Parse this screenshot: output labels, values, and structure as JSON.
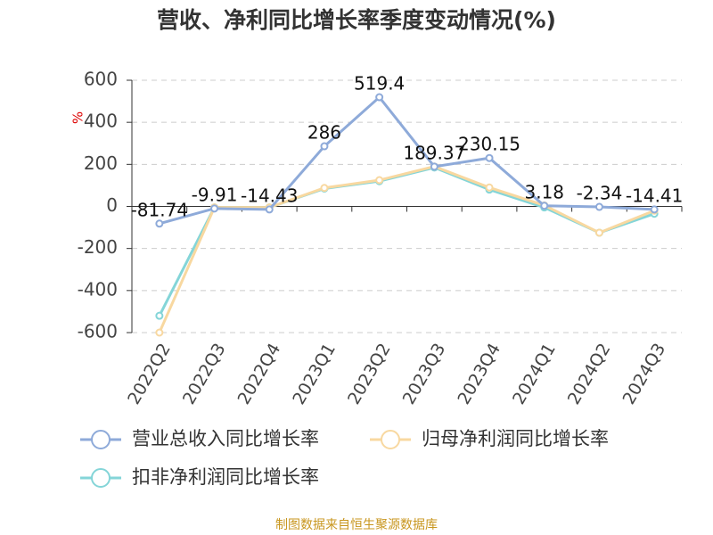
{
  "chart_data": {
    "type": "line",
    "title": "营收、净利同比增长率季度变动情况(%)",
    "y_label": "%",
    "categories": [
      "2022Q2",
      "2022Q3",
      "2022Q4",
      "2023Q1",
      "2023Q2",
      "2023Q3",
      "2023Q4",
      "2024Q1",
      "2024Q2",
      "2024Q3"
    ],
    "series": [
      {
        "name": "营业总收入同比增长率",
        "color": "#8eaad9",
        "values": [
          -81.74,
          -9.91,
          -14.43,
          286,
          519.4,
          189.37,
          230.15,
          3.18,
          -2.34,
          -14.41
        ],
        "show_labels": true
      },
      {
        "name": "归母净利润同比增长率",
        "color": "#f8d8a0",
        "values": [
          -600,
          -5,
          -5,
          88,
          125,
          190,
          90,
          5,
          -125,
          -20
        ]
      },
      {
        "name": "扣非净利润同比增长率",
        "color": "#84d5d8",
        "values": [
          -520,
          -5,
          -5,
          85,
          120,
          185,
          80,
          -5,
          -125,
          -35
        ]
      }
    ],
    "ylim": [
      -600,
      600
    ],
    "yticks": [
      -600,
      -400,
      -200,
      0,
      200,
      400,
      600
    ],
    "grid": true,
    "source": "制图数据来自恒生聚源数据库"
  }
}
